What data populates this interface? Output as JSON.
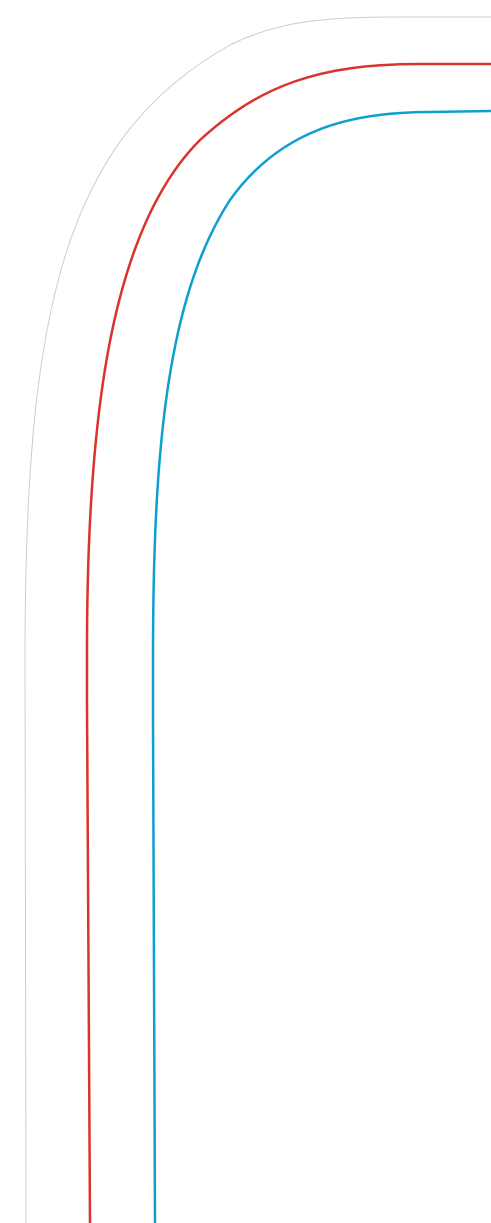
{
  "lines": [
    {
      "id": "outer",
      "color": "#cccccc"
    },
    {
      "id": "middle",
      "color": "#d9342b"
    },
    {
      "id": "inner",
      "color": "#0f9fcf"
    }
  ]
}
